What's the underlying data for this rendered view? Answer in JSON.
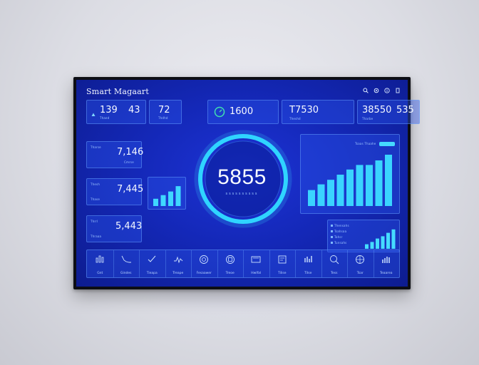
{
  "header": {
    "title": "Smart Magaart"
  },
  "top_icons": [
    "search-icon",
    "settings-icon",
    "info-icon",
    "power-icon"
  ],
  "top_stats": [
    {
      "values": [
        "139",
        "43"
      ],
      "label": "Thaed"
    },
    {
      "values": [
        "72"
      ],
      "label": "Thdhd"
    },
    {
      "values": [
        "1600"
      ],
      "label": ""
    },
    {
      "values": [
        "T7530"
      ],
      "label": "Theshd"
    },
    {
      "values": [
        "38550",
        "535"
      ],
      "label": "Tharbe"
    }
  ],
  "side_stats": [
    {
      "value": "7,146",
      "label": "Tharse",
      "sub": "Cmrse"
    },
    {
      "value": "7,445",
      "label": "Thesh",
      "sub": "Thase"
    },
    {
      "value": "5,443",
      "label": "Thrrl",
      "sub": "Thraaa"
    }
  ],
  "center_gauge": {
    "value": "5855",
    "label": "ssssssssss",
    "progress": 1.0
  },
  "mini_bars": [
    0.3,
    0.45,
    0.6,
    0.82
  ],
  "right_chart": {
    "header_label": "Tsaas Thaahe",
    "values": [
      0.28,
      0.38,
      0.46,
      0.55,
      0.64,
      0.72,
      0.72,
      0.8,
      0.9
    ]
  },
  "right_mini_chart": {
    "legend": [
      "Thensahs",
      "Tsahsaa",
      "Tahsr",
      "Tunsahs"
    ],
    "values": [
      0.2,
      0.3,
      0.45,
      0.55,
      0.7,
      0.85
    ]
  },
  "toolbar": [
    {
      "icon": "bar-icon",
      "label": "Gnt"
    },
    {
      "icon": "line-icon",
      "label": "Gindes"
    },
    {
      "icon": "check-icon",
      "label": "Tieapa"
    },
    {
      "icon": "pulse-icon",
      "label": "Treape"
    },
    {
      "icon": "globe-icon",
      "label": "Fesaawer"
    },
    {
      "icon": "document-icon",
      "label": "Treoe"
    },
    {
      "icon": "monitor-icon",
      "label": "Hwlfal"
    },
    {
      "icon": "board-icon",
      "label": "Tilise"
    },
    {
      "icon": "bars-icon",
      "label": "Tilse"
    },
    {
      "icon": "search-icon",
      "label": "Tess"
    },
    {
      "icon": "network-icon",
      "label": "Tsar"
    },
    {
      "icon": "bar-chart-icon",
      "label": "Teaarea"
    }
  ],
  "colors": {
    "screen": "#1428b8",
    "accent": "#2fd4ff",
    "frame": "#0d0e14"
  }
}
